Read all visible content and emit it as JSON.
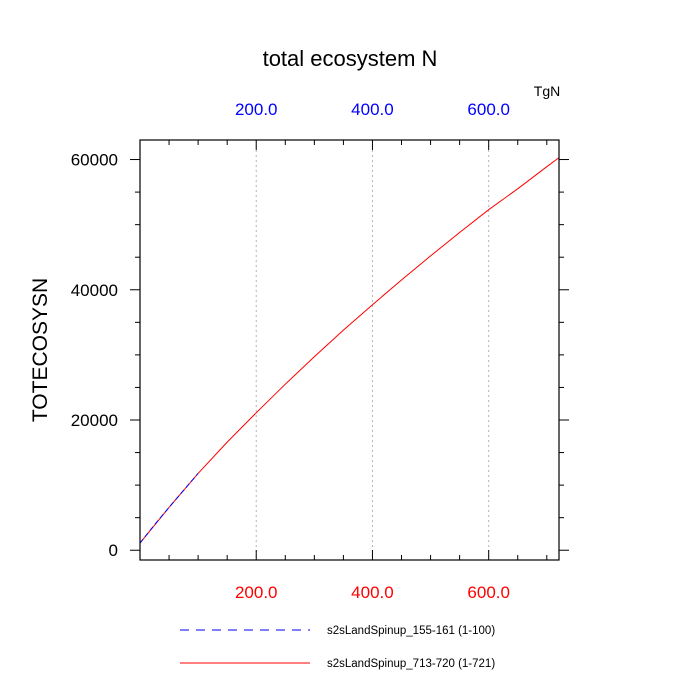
{
  "chart_data": {
    "type": "line",
    "title": "total ecosystem N",
    "ylabel": "TOTECOSYSN",
    "units_label": "TgN",
    "xlim": [
      0,
      721
    ],
    "ylim": [
      -1500,
      63000
    ],
    "x_ticks": [
      {
        "value": 200,
        "label": "200.0"
      },
      {
        "value": 400,
        "label": "400.0"
      },
      {
        "value": 600,
        "label": "600.0"
      }
    ],
    "y_ticks": [
      {
        "value": 0,
        "label": "0"
      },
      {
        "value": 20000,
        "label": "20000"
      },
      {
        "value": 40000,
        "label": "40000"
      },
      {
        "value": 60000,
        "label": "60000"
      }
    ],
    "grid": "vertical dashed at major x ticks",
    "colors": {
      "bottom_tick_labels": "#ff0000",
      "top_tick_labels": "#0000ff"
    },
    "series": [
      {
        "name": "s2sLandSpinup_155-161 (1-100)",
        "color": "#0000ff",
        "dash": "dashed",
        "x": [
          0,
          25,
          50,
          75,
          100
        ],
        "y": [
          1100,
          3900,
          6600,
          9200,
          11800
        ]
      },
      {
        "name": "s2sLandSpinup_713-720 (1-721)",
        "color": "#ff0000",
        "dash": "solid",
        "x": [
          0,
          50,
          100,
          150,
          200,
          250,
          300,
          350,
          400,
          450,
          500,
          550,
          600,
          650,
          700,
          721
        ],
        "y": [
          1100,
          6600,
          11800,
          16600,
          21100,
          25500,
          29700,
          33800,
          37700,
          41500,
          45200,
          48800,
          52300,
          55500,
          58900,
          60300
        ]
      }
    ]
  }
}
